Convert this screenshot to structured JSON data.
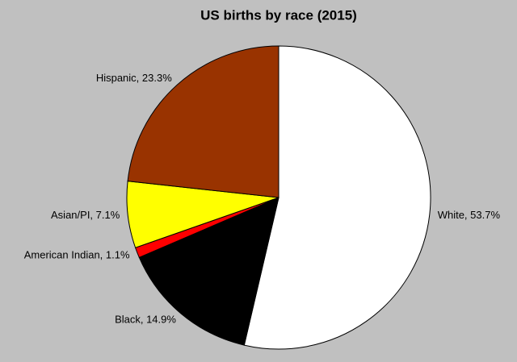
{
  "chart_data": {
    "type": "pie",
    "title": "US births by race (2015)",
    "values": [
      53.7,
      14.9,
      1.1,
      7.1,
      23.3
    ],
    "value_labels": [
      "White, 53.7%",
      "Black, 14.9%",
      "American Indian, 1.1%",
      "Asian/PI, 7.1%",
      "Hispanic, 23.3%"
    ],
    "colors": [
      "#ffffff",
      "#000000",
      "#ff0000",
      "#ffff00",
      "#993300"
    ]
  }
}
